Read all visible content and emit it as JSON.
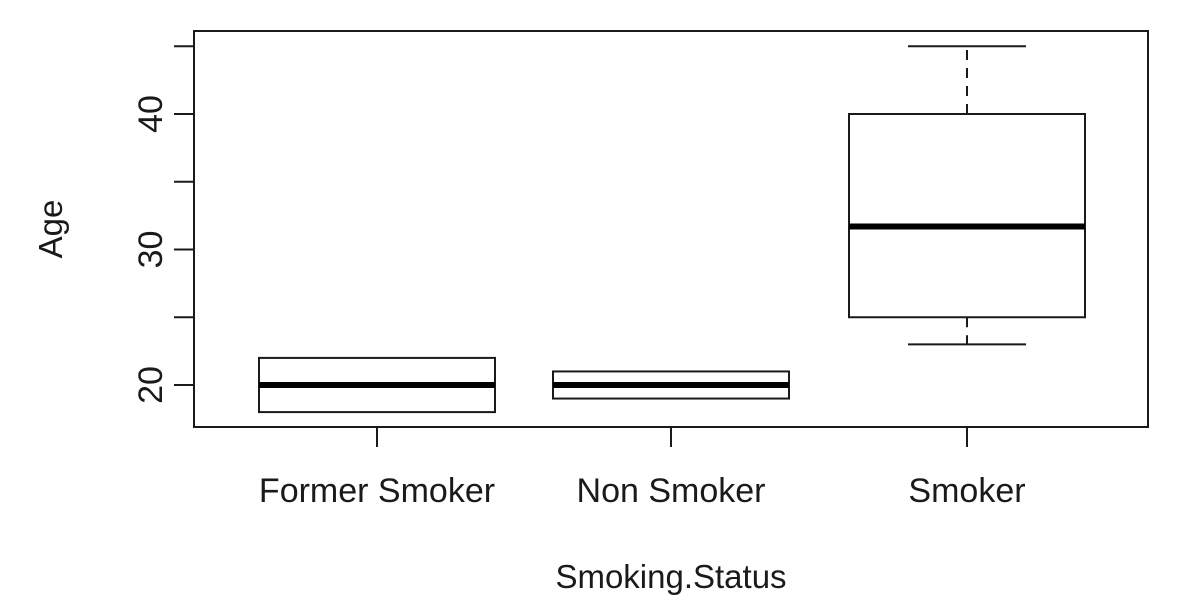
{
  "chart_data": {
    "type": "boxplot",
    "xlabel": "Smoking.Status",
    "ylabel": "Age",
    "ylim": [
      17,
      46
    ],
    "y_ticks": [
      20,
      25,
      30,
      35,
      40,
      45
    ],
    "y_tick_labels": [
      "20",
      "",
      "30",
      "",
      "40",
      ""
    ],
    "categories": [
      "Former Smoker",
      "Non Smoker",
      "Smoker"
    ],
    "boxes": [
      {
        "category": "Former Smoker",
        "whisker_low": 18,
        "q1": 18,
        "median": 20,
        "q3": 22,
        "whisker_high": 22
      },
      {
        "category": "Non Smoker",
        "whisker_low": 19,
        "q1": 19,
        "median": 20,
        "q3": 21,
        "whisker_high": 21
      },
      {
        "category": "Smoker",
        "whisker_low": 23,
        "q1": 25,
        "median": 31.7,
        "q3": 40,
        "whisker_high": 45
      }
    ],
    "grid": false,
    "legend": "none"
  }
}
